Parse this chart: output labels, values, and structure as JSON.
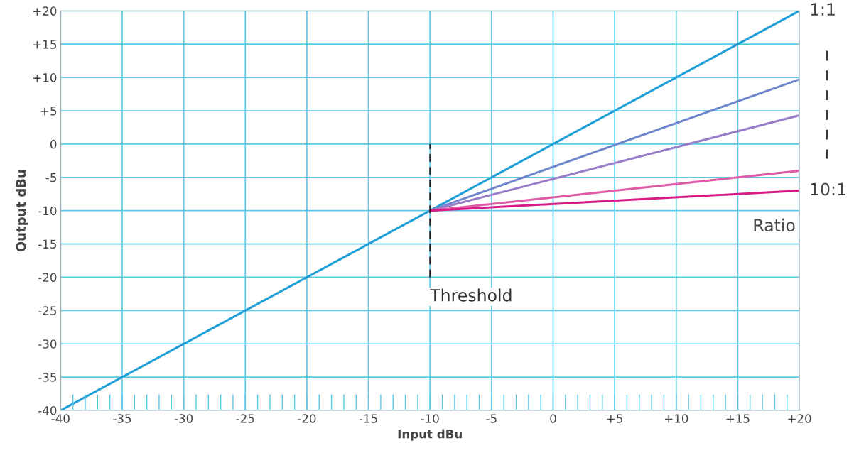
{
  "chart_data": {
    "type": "line",
    "xlabel": "Input dBu",
    "ylabel": "Output dBu",
    "xlim": [
      -40,
      20
    ],
    "ylim": [
      -40,
      20
    ],
    "xticks": [
      -40,
      -35,
      -30,
      -25,
      -20,
      -15,
      -10,
      -5,
      0,
      {
        "value": 5,
        "label": "+5"
      },
      {
        "value": 10,
        "label": "+10"
      },
      {
        "value": 15,
        "label": "+15"
      },
      {
        "value": 20,
        "label": "+20"
      }
    ],
    "yticks": [
      -40,
      -35,
      -30,
      -25,
      -20,
      -15,
      -10,
      -5,
      0,
      {
        "value": 5,
        "label": "+5"
      },
      {
        "value": 10,
        "label": "+10"
      },
      {
        "value": 15,
        "label": "+15"
      },
      {
        "value": 20,
        "label": "+20"
      }
    ],
    "grid": true,
    "series": [
      {
        "name": "1:1",
        "color": "#1f9fd6",
        "x": [
          -40,
          20
        ],
        "values": [
          -40,
          20
        ]
      },
      {
        "color": "#6f86cc",
        "x": [
          -10,
          20
        ],
        "values": [
          -10,
          9.7
        ]
      },
      {
        "color": "#9a7cc8",
        "x": [
          -10,
          20
        ],
        "values": [
          -10,
          4.3
        ]
      },
      {
        "color": "#e05aa8",
        "x": [
          -10,
          20
        ],
        "values": [
          -10,
          -4
        ]
      },
      {
        "name": "10:1",
        "color": "#d81c87",
        "x": [
          -10,
          20
        ],
        "values": [
          -10,
          -7
        ]
      }
    ],
    "ref_lines": [
      {
        "axis": "x",
        "value": -10,
        "label": "Threshold",
        "color": "#222222",
        "line_style": "dashed"
      }
    ],
    "annotations": [
      "Ratio"
    ]
  }
}
